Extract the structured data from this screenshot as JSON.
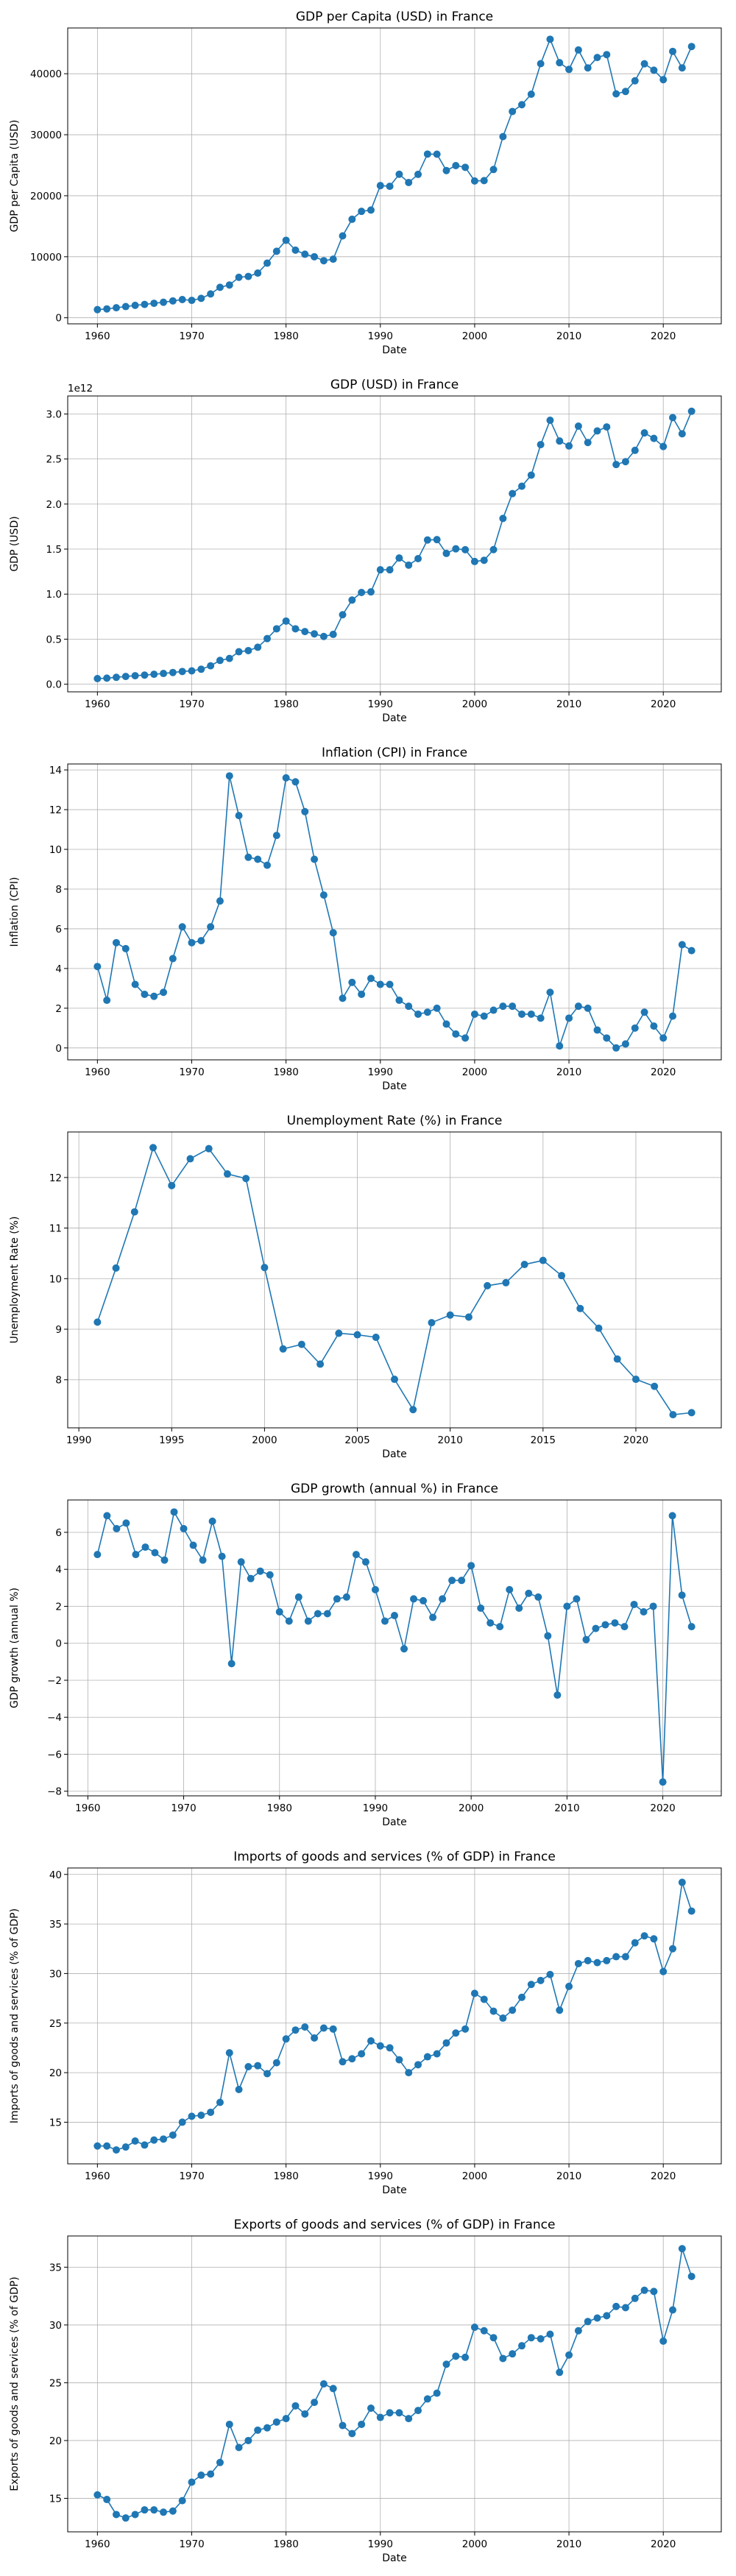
{
  "chart_data": [
    {
      "type": "line",
      "title": "GDP per Capita (USD) in France",
      "xlabel": "Date",
      "ylabel": "GDP per Capita (USD)",
      "xlim": [
        1956.85,
        2026.15
      ],
      "ylim": [
        -1000,
        47500
      ],
      "xticks": [
        1960,
        1970,
        1980,
        1990,
        2000,
        2010,
        2020
      ],
      "yticks": [
        0,
        10000,
        20000,
        30000,
        40000
      ],
      "ytick_labels": [
        "0",
        "10000",
        "20000",
        "30000",
        "40000"
      ],
      "grid": true,
      "x": [
        1960,
        1961,
        1962,
        1963,
        1964,
        1965,
        1966,
        1967,
        1968,
        1969,
        1970,
        1971,
        1972,
        1973,
        1974,
        1975,
        1976,
        1977,
        1978,
        1979,
        1980,
        1981,
        1982,
        1983,
        1984,
        1985,
        1986,
        1987,
        1988,
        1989,
        1990,
        1991,
        1992,
        1993,
        1994,
        1995,
        1996,
        1997,
        1998,
        1999,
        2000,
        2001,
        2002,
        2003,
        2004,
        2005,
        2006,
        2007,
        2008,
        2009,
        2010,
        2011,
        2012,
        2013,
        2014,
        2015,
        2016,
        2017,
        2018,
        2019,
        2020,
        2021,
        2022,
        2023
      ],
      "y": [
        1330,
        1450,
        1640,
        1830,
        2030,
        2180,
        2370,
        2540,
        2760,
        2980,
        2850,
        3180,
        3900,
        4990,
        5370,
        6630,
        6770,
        7320,
        8950,
        10900,
        12700,
        11080,
        10410,
        10000,
        9350,
        9600,
        13420,
        16140,
        17440,
        17650,
        21660,
        21550,
        23520,
        22170,
        23500,
        26830,
        26810,
        24130,
        24940,
        24660,
        22420,
        22480,
        24300,
        29690,
        33810,
        34920,
        36640,
        41650,
        45650,
        41810,
        40710,
        43890,
        40960,
        42660,
        43130,
        36700,
        37090,
        38840,
        41630,
        40580,
        39030,
        43660,
        40960,
        44460
      ]
    },
    {
      "type": "line",
      "title": "GDP (USD) in France",
      "xlabel": "Date",
      "ylabel": "GDP (USD)",
      "offset_label": "1e12",
      "xlim": [
        1956.85,
        2026.15
      ],
      "ylim": [
        -0.085,
        3.2
      ],
      "xticks": [
        1960,
        1970,
        1980,
        1990,
        2000,
        2010,
        2020
      ],
      "yticks": [
        0,
        0.5,
        1,
        1.5,
        2,
        2.5,
        3
      ],
      "ytick_labels": [
        "0.0",
        "0.5",
        "1.0",
        "1.5",
        "2.0",
        "2.5",
        "3.0"
      ],
      "grid": true,
      "x": [
        1960,
        1961,
        1962,
        1963,
        1964,
        1965,
        1966,
        1967,
        1968,
        1969,
        1970,
        1971,
        1972,
        1973,
        1974,
        1975,
        1976,
        1977,
        1978,
        1979,
        1980,
        1981,
        1982,
        1983,
        1984,
        1985,
        1986,
        1987,
        1988,
        1989,
        1990,
        1991,
        1992,
        1993,
        1994,
        1995,
        1996,
        1997,
        1998,
        1999,
        2000,
        2001,
        2002,
        2003,
        2004,
        2005,
        2006,
        2007,
        2008,
        2009,
        2010,
        2011,
        2012,
        2013,
        2014,
        2015,
        2016,
        2017,
        2018,
        2019,
        2020,
        2021,
        2022,
        2023
      ],
      "y": [
        0.062,
        0.067,
        0.076,
        0.086,
        0.094,
        0.101,
        0.11,
        0.119,
        0.13,
        0.141,
        0.148,
        0.166,
        0.204,
        0.264,
        0.286,
        0.36,
        0.373,
        0.41,
        0.506,
        0.615,
        0.701,
        0.615,
        0.584,
        0.559,
        0.53,
        0.553,
        0.771,
        0.934,
        1.018,
        1.025,
        1.27,
        1.27,
        1.401,
        1.322,
        1.394,
        1.601,
        1.605,
        1.452,
        1.503,
        1.493,
        1.362,
        1.376,
        1.494,
        1.84,
        2.116,
        2.198,
        2.321,
        2.66,
        2.93,
        2.7,
        2.645,
        2.865,
        2.683,
        2.812,
        2.856,
        2.439,
        2.471,
        2.596,
        2.79,
        2.729,
        2.639,
        2.96,
        2.78,
        3.03
      ]
    },
    {
      "type": "line",
      "title": "Inflation (CPI) in France",
      "xlabel": "Date",
      "ylabel": "Inflation (CPI)",
      "xlim": [
        1956.85,
        2026.15
      ],
      "ylim": [
        -0.6,
        14.3
      ],
      "xticks": [
        1960,
        1970,
        1980,
        1990,
        2000,
        2010,
        2020
      ],
      "yticks": [
        0,
        2,
        4,
        6,
        8,
        10,
        12,
        14
      ],
      "ytick_labels": [
        "0",
        "2",
        "4",
        "6",
        "8",
        "10",
        "12",
        "14"
      ],
      "grid": true,
      "x": [
        1960,
        1961,
        1962,
        1963,
        1964,
        1965,
        1966,
        1967,
        1968,
        1969,
        1970,
        1971,
        1972,
        1973,
        1974,
        1975,
        1976,
        1977,
        1978,
        1979,
        1980,
        1981,
        1982,
        1983,
        1984,
        1985,
        1986,
        1987,
        1988,
        1989,
        1990,
        1991,
        1992,
        1993,
        1994,
        1995,
        1996,
        1997,
        1998,
        1999,
        2000,
        2001,
        2002,
        2003,
        2004,
        2005,
        2006,
        2007,
        2008,
        2009,
        2010,
        2011,
        2012,
        2013,
        2014,
        2015,
        2016,
        2017,
        2018,
        2019,
        2020,
        2021,
        2022,
        2023
      ],
      "y": [
        4.1,
        2.4,
        5.3,
        5.0,
        3.2,
        2.7,
        2.6,
        2.8,
        4.5,
        6.1,
        5.3,
        5.4,
        6.1,
        7.4,
        13.7,
        11.7,
        9.6,
        9.5,
        9.2,
        10.7,
        13.6,
        13.4,
        11.9,
        9.5,
        7.7,
        5.8,
        2.5,
        3.3,
        2.7,
        3.5,
        3.2,
        3.2,
        2.4,
        2.1,
        1.7,
        1.8,
        2.0,
        1.2,
        0.7,
        0.5,
        1.7,
        1.6,
        1.9,
        2.1,
        2.1,
        1.7,
        1.7,
        1.5,
        2.8,
        0.1,
        1.5,
        2.1,
        2.0,
        0.9,
        0.5,
        0.0,
        0.2,
        1.0,
        1.8,
        1.1,
        0.5,
        1.6,
        5.2,
        4.9
      ]
    },
    {
      "type": "line",
      "title": "Unemployment Rate (%) in France",
      "xlabel": "Date",
      "ylabel": "Unemployment Rate (%)",
      "xlim": [
        1989.4,
        2024.6
      ],
      "ylim": [
        7.05,
        12.9
      ],
      "xticks": [
        1990,
        1995,
        2000,
        2005,
        2010,
        2015,
        2020
      ],
      "yticks": [
        8,
        9,
        10,
        11,
        12
      ],
      "ytick_labels": [
        "8",
        "9",
        "10",
        "11",
        "12"
      ],
      "grid": true,
      "x": [
        1991,
        1992,
        1993,
        1994,
        1995,
        1996,
        1997,
        1998,
        1999,
        2000,
        2001,
        2002,
        2003,
        2004,
        2005,
        2006,
        2007,
        2008,
        2009,
        2010,
        2011,
        2012,
        2013,
        2014,
        2015,
        2016,
        2017,
        2018,
        2019,
        2020,
        2021,
        2022,
        2023
      ],
      "y": [
        9.14,
        10.21,
        11.32,
        12.59,
        11.84,
        12.37,
        12.57,
        12.07,
        11.98,
        10.22,
        8.61,
        8.7,
        8.31,
        8.92,
        8.89,
        8.84,
        8.01,
        7.41,
        9.13,
        9.28,
        9.24,
        9.86,
        9.92,
        10.28,
        10.36,
        10.06,
        9.41,
        9.02,
        8.41,
        8.01,
        7.87,
        7.31,
        7.35
      ]
    },
    {
      "type": "line",
      "title": "GDP growth (annual %) in France",
      "xlabel": "Date",
      "ylabel": "GDP growth (annual %)",
      "xlim": [
        1957.9,
        2026.1
      ],
      "ylim": [
        -8.25,
        7.75
      ],
      "xticks": [
        1960,
        1970,
        1980,
        1990,
        2000,
        2010,
        2020
      ],
      "yticks": [
        -8,
        -6,
        -4,
        -2,
        0,
        2,
        4,
        6
      ],
      "ytick_labels": [
        "−8",
        "−6",
        "−4",
        "−2",
        "0",
        "2",
        "4",
        "6"
      ],
      "grid": true,
      "x": [
        1961,
        1962,
        1963,
        1964,
        1965,
        1966,
        1967,
        1968,
        1969,
        1970,
        1971,
        1972,
        1973,
        1974,
        1975,
        1976,
        1977,
        1978,
        1979,
        1980,
        1981,
        1982,
        1983,
        1984,
        1985,
        1986,
        1987,
        1988,
        1989,
        1990,
        1991,
        1992,
        1993,
        1994,
        1995,
        1996,
        1997,
        1998,
        1999,
        2000,
        2001,
        2002,
        2003,
        2004,
        2005,
        2006,
        2007,
        2008,
        2009,
        2010,
        2011,
        2012,
        2013,
        2014,
        2015,
        2016,
        2017,
        2018,
        2019,
        2020,
        2021,
        2022,
        2023
      ],
      "y": [
        4.8,
        6.9,
        6.2,
        6.5,
        4.8,
        5.2,
        4.9,
        4.5,
        7.1,
        6.2,
        5.3,
        4.5,
        6.6,
        4.7,
        -1.1,
        4.4,
        3.5,
        3.9,
        3.7,
        1.7,
        1.2,
        2.5,
        1.2,
        1.6,
        1.6,
        2.4,
        2.5,
        4.8,
        4.4,
        2.9,
        1.2,
        1.5,
        -0.3,
        2.4,
        2.3,
        1.4,
        2.4,
        3.4,
        3.4,
        4.2,
        1.9,
        1.1,
        0.9,
        2.9,
        1.9,
        2.7,
        2.5,
        0.4,
        -2.8,
        2.0,
        2.4,
        0.2,
        0.8,
        1.0,
        1.1,
        0.9,
        2.1,
        1.7,
        2.0,
        -7.5,
        6.9,
        2.6,
        0.9
      ]
    },
    {
      "type": "line",
      "title": "Imports of goods and services (% of GDP) in France",
      "xlabel": "Date",
      "ylabel": "Imports of goods and services (% of GDP)",
      "xlim": [
        1956.85,
        2026.15
      ],
      "ylim": [
        10.8,
        40.65
      ],
      "xticks": [
        1960,
        1970,
        1980,
        1990,
        2000,
        2010,
        2020
      ],
      "yticks": [
        15,
        20,
        25,
        30,
        35,
        40
      ],
      "ytick_labels": [
        "15",
        "20",
        "25",
        "30",
        "35",
        "40"
      ],
      "grid": true,
      "x": [
        1960,
        1961,
        1962,
        1963,
        1964,
        1965,
        1966,
        1967,
        1968,
        1969,
        1970,
        1971,
        1972,
        1973,
        1974,
        1975,
        1976,
        1977,
        1978,
        1979,
        1980,
        1981,
        1982,
        1983,
        1984,
        1985,
        1986,
        1987,
        1988,
        1989,
        1990,
        1991,
        1992,
        1993,
        1994,
        1995,
        1996,
        1997,
        1998,
        1999,
        2000,
        2001,
        2002,
        2003,
        2004,
        2005,
        2006,
        2007,
        2008,
        2009,
        2010,
        2011,
        2012,
        2013,
        2014,
        2015,
        2016,
        2017,
        2018,
        2019,
        2020,
        2021,
        2022,
        2023
      ],
      "y": [
        12.6,
        12.6,
        12.2,
        12.5,
        13.1,
        12.7,
        13.2,
        13.3,
        13.7,
        15.0,
        15.6,
        15.7,
        16.0,
        17.0,
        22.0,
        18.3,
        20.6,
        20.7,
        19.9,
        21.0,
        23.4,
        24.3,
        24.6,
        23.5,
        24.5,
        24.4,
        21.1,
        21.4,
        21.9,
        23.2,
        22.7,
        22.5,
        21.3,
        20.0,
        20.8,
        21.6,
        21.9,
        23.0,
        24.0,
        24.4,
        28.0,
        27.4,
        26.2,
        25.5,
        26.3,
        27.6,
        28.9,
        29.3,
        29.9,
        26.3,
        28.7,
        31.0,
        31.3,
        31.1,
        31.3,
        31.7,
        31.7,
        33.1,
        33.8,
        33.5,
        30.2,
        32.5,
        39.2,
        36.3
      ]
    },
    {
      "type": "line",
      "title": "Exports of goods and services (% of GDP) in France",
      "xlabel": "Date",
      "ylabel": "Exports of goods and services (% of GDP)",
      "xlim": [
        1956.85,
        2026.15
      ],
      "ylim": [
        12.1,
        37.7
      ],
      "xticks": [
        1960,
        1970,
        1980,
        1990,
        2000,
        2010,
        2020
      ],
      "yticks": [
        15,
        20,
        25,
        30,
        35
      ],
      "ytick_labels": [
        "15",
        "20",
        "25",
        "30",
        "35"
      ],
      "grid": true,
      "x": [
        1960,
        1961,
        1962,
        1963,
        1964,
        1965,
        1966,
        1967,
        1968,
        1969,
        1970,
        1971,
        1972,
        1973,
        1974,
        1975,
        1976,
        1977,
        1978,
        1979,
        1980,
        1981,
        1982,
        1983,
        1984,
        1985,
        1986,
        1987,
        1988,
        1989,
        1990,
        1991,
        1992,
        1993,
        1994,
        1995,
        1996,
        1997,
        1998,
        1999,
        2000,
        2001,
        2002,
        2003,
        2004,
        2005,
        2006,
        2007,
        2008,
        2009,
        2010,
        2011,
        2012,
        2013,
        2014,
        2015,
        2016,
        2017,
        2018,
        2019,
        2020,
        2021,
        2022,
        2023
      ],
      "y": [
        15.3,
        14.9,
        13.6,
        13.3,
        13.6,
        14.0,
        14.0,
        13.8,
        13.9,
        14.8,
        16.4,
        17.0,
        17.1,
        18.1,
        21.4,
        19.4,
        20.0,
        20.9,
        21.1,
        21.6,
        21.9,
        23.0,
        22.3,
        23.3,
        24.9,
        24.5,
        21.3,
        20.6,
        21.4,
        22.8,
        22.0,
        22.4,
        22.4,
        21.9,
        22.6,
        23.6,
        24.1,
        26.6,
        27.3,
        27.2,
        29.8,
        29.5,
        28.9,
        27.1,
        27.5,
        28.2,
        28.9,
        28.8,
        29.2,
        25.9,
        27.4,
        29.5,
        30.3,
        30.6,
        30.8,
        31.6,
        31.5,
        32.3,
        33.0,
        32.9,
        28.6,
        31.3,
        36.6,
        34.2
      ]
    }
  ]
}
